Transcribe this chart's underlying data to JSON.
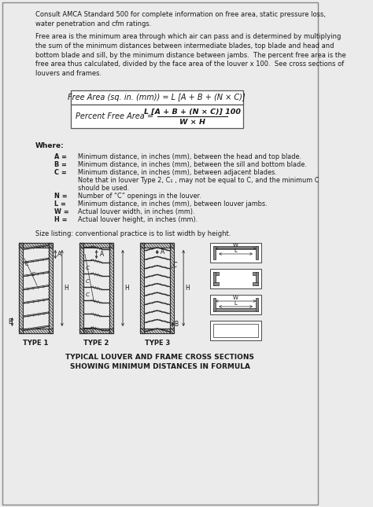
{
  "bg_color": "#ebebeb",
  "inner_bg": "#f5f4f1",
  "para1": "Consult AMCA Standard 500 for complete information on free area, static pressure loss,\nwater penetration and cfm ratings.",
  "para2": "Free area is the minimum area through which air can pass and is determined by multiplying\nthe sum of the minimum distances between intermediate blades, top blade and head and\nbottom blade and sill, by the minimum distance between jambs.  The percent free area is the\nfree area thus calculated, divided by the face area of the louver x 100.  See cross sections of\nlouvers and frames.",
  "formula1": "Free Area (sq. in. (mm)) = L [A + B + (N × C)]",
  "formula2_left": "Percent Free Area = ",
  "formula2_num": "L [A + B + (N × C)] 100",
  "formula2_den": "W × H",
  "where_label": "Where:",
  "vars": [
    [
      "A =",
      "Minimum distance, in inches (mm), between the head and top blade."
    ],
    [
      "B =",
      "Minimum distance, in inches (mm), between the sill and bottom blade."
    ],
    [
      "C =",
      "Minimum distance, in inches (mm), between adjacent blades."
    ],
    [
      "",
      "Note that in louver Type 2, C₁ , may not be equal to C, and the minimum C"
    ],
    [
      "",
      "should be used."
    ],
    [
      "N =",
      "Number of “C” openings in the louver."
    ],
    [
      "L =",
      "Minimum distance, in inches (mm), between louver jambs."
    ],
    [
      "W =",
      "Actual louver width, in inches (mm)."
    ],
    [
      "H =",
      "Actual louver height, in inches (mm)."
    ]
  ],
  "size_note": "Size listing: conventional practice is to list width by height.",
  "type_labels": [
    "TYPE 1",
    "TYPE 2",
    "TYPE 3"
  ],
  "title_line1": "TYPICAL LOUVER AND FRAME CROSS SECTIONS",
  "title_line2": "SHOWING MINIMUM DISTANCES IN FORMULA",
  "text_color": "#1a1a1a",
  "box_color": "#ffffff",
  "line_color": "#2a2a2a",
  "gray_color": "#888888"
}
